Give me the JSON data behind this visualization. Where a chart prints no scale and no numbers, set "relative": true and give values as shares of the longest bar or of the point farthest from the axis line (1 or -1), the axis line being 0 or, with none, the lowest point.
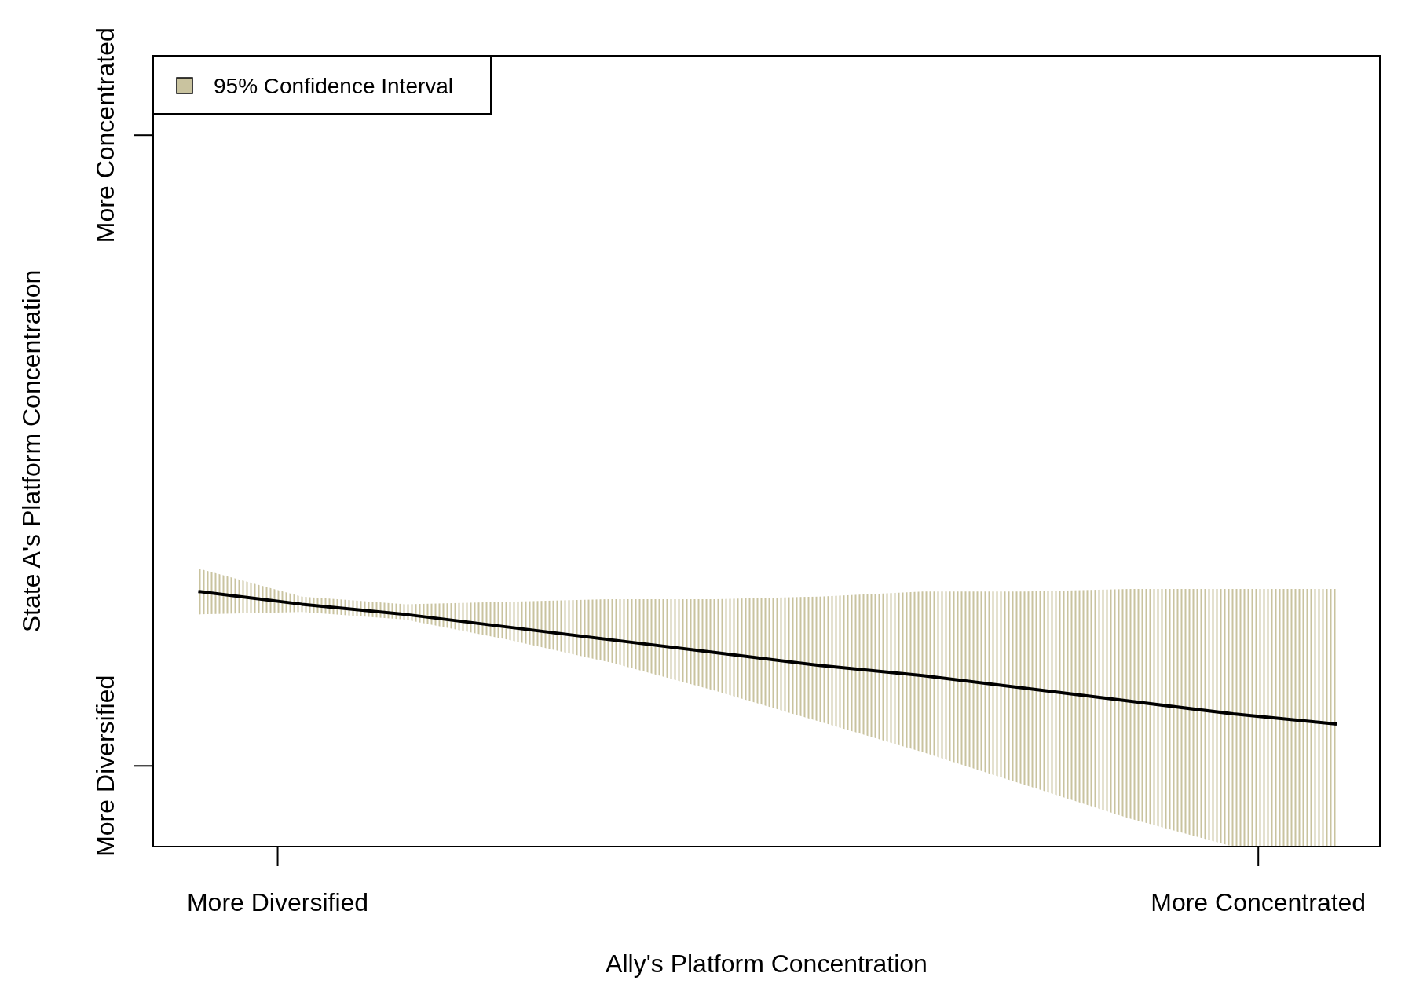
{
  "chart_data": {
    "type": "line",
    "relative": true,
    "xlabel": "Ally's Platform Concentration",
    "ylabel": "State A's Platform Concentration",
    "categories": [
      null,
      null,
      null,
      null,
      null,
      null,
      null,
      null,
      null,
      null,
      null,
      null
    ],
    "series": [
      {
        "name": "95% Confidence Interval",
        "color": "#000000",
        "values": [
          1,
          0.95,
          0.91,
          0.86,
          0.81,
          0.76,
          0.71,
          0.67,
          0.62,
          0.57,
          0.52,
          0.48
        ],
        "lower": [
          0.91,
          0.92,
          0.89,
          0.81,
          0.72,
          0.61,
          0.49,
          0.37,
          0.24,
          0.11,
          0,
          0
        ],
        "upper": [
          1.09,
          0.98,
          0.95,
          0.96,
          0.97,
          0.97,
          0.98,
          1,
          1,
          1.01,
          1.01,
          1.01
        ]
      }
    ],
    "annotations": [
      "More Diversified",
      "More Concentrated",
      "More Diversified",
      "More Concentrated"
    ],
    "legend": "top left",
    "grid": false,
    "marker": "none",
    "line_style": "solid"
  }
}
